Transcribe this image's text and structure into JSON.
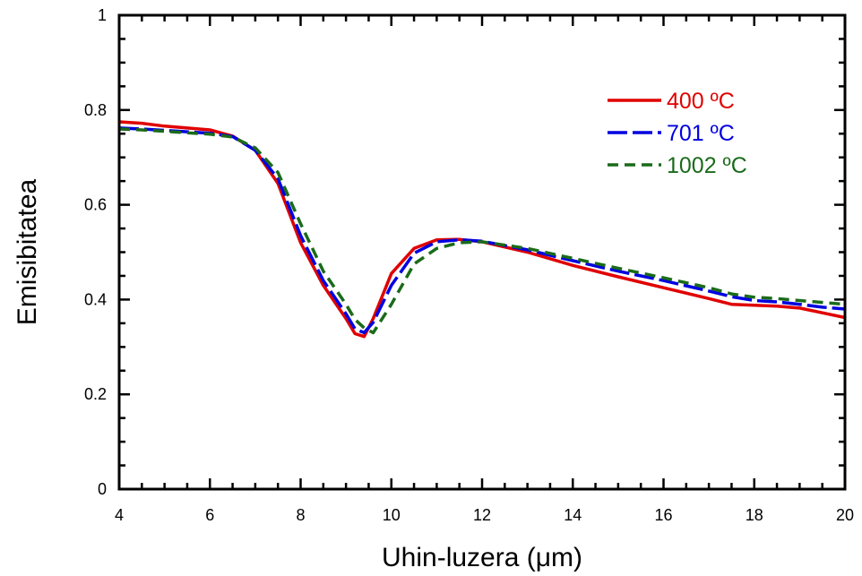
{
  "chart_data": {
    "type": "line",
    "title": "",
    "xlabel": "Uhin-luzera (μm)",
    "ylabel": "Emisibitatea",
    "xlim": [
      4,
      20
    ],
    "ylim": [
      0,
      1
    ],
    "xticks": [
      4,
      6,
      8,
      10,
      12,
      14,
      16,
      18,
      20
    ],
    "yticks": [
      0,
      0.2,
      0.4,
      0.6,
      0.8,
      1
    ],
    "xtick_labels": [
      "4",
      "6",
      "8",
      "10",
      "12",
      "14",
      "16",
      "18",
      "20"
    ],
    "ytick_labels": [
      "0",
      "0.2",
      "0.4",
      "0.6",
      "0.8",
      "1"
    ],
    "grid": false,
    "legend_position": "top-right",
    "series": [
      {
        "name": "400 ºC",
        "color": "#e00000",
        "style": "solid",
        "x": [
          4,
          4.5,
          5,
          5.5,
          6,
          6.5,
          7,
          7.5,
          8,
          8.5,
          9,
          9.2,
          9.4,
          9.6,
          10,
          10.5,
          11,
          11.5,
          12,
          13,
          14,
          15,
          16,
          17,
          17.5,
          18,
          18.5,
          19,
          19.5,
          20
        ],
        "y": [
          0.775,
          0.772,
          0.766,
          0.762,
          0.758,
          0.745,
          0.715,
          0.645,
          0.52,
          0.43,
          0.36,
          0.328,
          0.322,
          0.36,
          0.455,
          0.508,
          0.526,
          0.527,
          0.522,
          0.5,
          0.472,
          0.448,
          0.425,
          0.402,
          0.39,
          0.388,
          0.386,
          0.382,
          0.372,
          0.362
        ]
      },
      {
        "name": "701 ºC",
        "color": "#0000e0",
        "style": "longdash",
        "x": [
          4,
          4.5,
          5,
          5.5,
          6,
          6.5,
          7,
          7.5,
          8,
          8.5,
          9,
          9.2,
          9.4,
          9.6,
          10,
          10.5,
          11,
          11.5,
          12,
          13,
          14,
          15,
          16,
          17,
          17.5,
          18,
          18.5,
          19,
          19.5,
          20
        ],
        "y": [
          0.762,
          0.76,
          0.757,
          0.754,
          0.751,
          0.744,
          0.715,
          0.655,
          0.535,
          0.44,
          0.37,
          0.338,
          0.33,
          0.352,
          0.43,
          0.498,
          0.522,
          0.526,
          0.523,
          0.505,
          0.482,
          0.46,
          0.44,
          0.418,
          0.406,
          0.398,
          0.395,
          0.39,
          0.384,
          0.38
        ]
      },
      {
        "name": "1002 ºC",
        "color": "#1a6b1a",
        "style": "dash",
        "x": [
          4,
          4.5,
          5,
          5.5,
          6,
          6.5,
          7,
          7.5,
          8,
          8.5,
          9,
          9.2,
          9.4,
          9.6,
          10,
          10.5,
          11,
          11.5,
          12,
          13,
          14,
          15,
          16,
          17,
          17.5,
          18,
          18.5,
          19,
          19.5,
          20
        ],
        "y": [
          0.76,
          0.758,
          0.755,
          0.752,
          0.749,
          0.743,
          0.72,
          0.668,
          0.56,
          0.46,
          0.39,
          0.358,
          0.34,
          0.33,
          0.39,
          0.475,
          0.508,
          0.52,
          0.522,
          0.508,
          0.487,
          0.466,
          0.446,
          0.425,
          0.412,
          0.405,
          0.402,
          0.398,
          0.394,
          0.39
        ]
      }
    ]
  }
}
